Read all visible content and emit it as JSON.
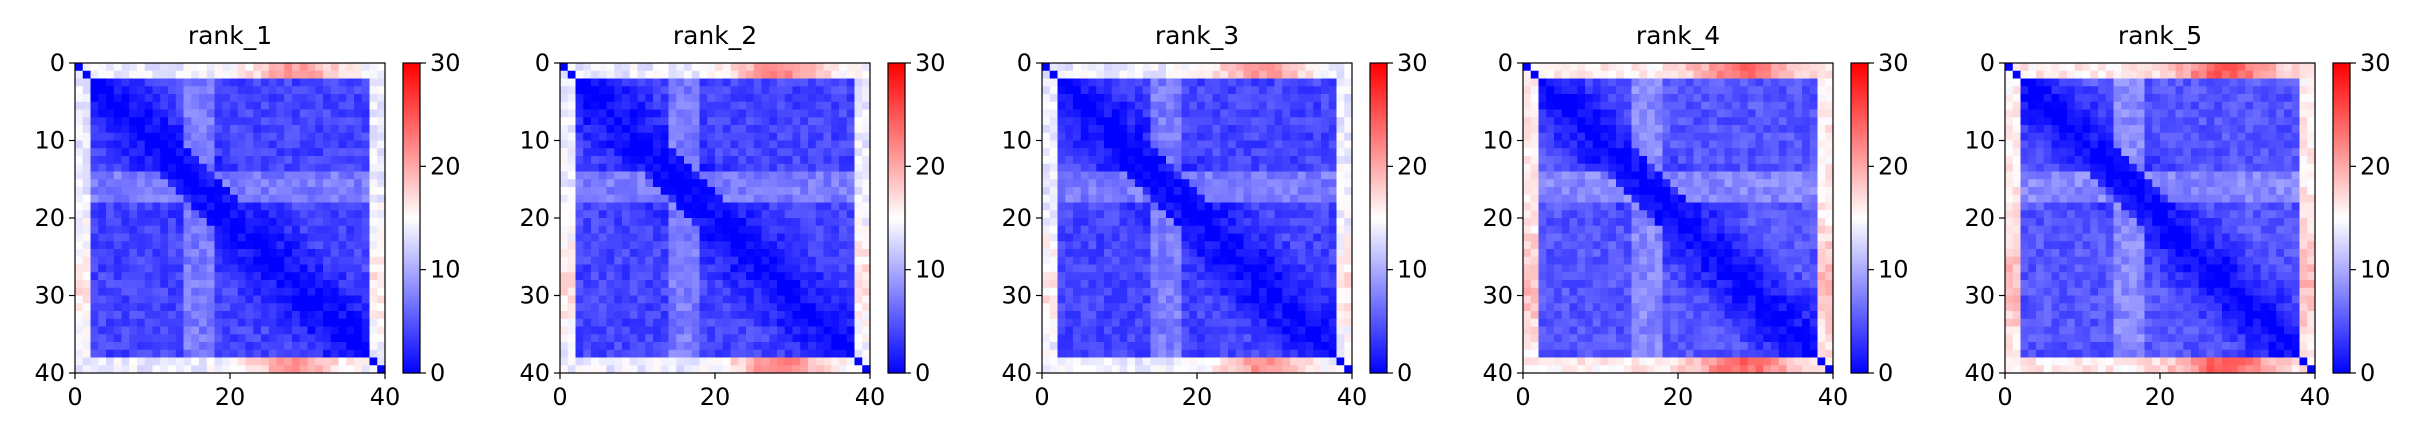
{
  "chart_data": [
    {
      "type": "heatmap",
      "title": "rank_1",
      "xlim": [
        0,
        40
      ],
      "ylim": [
        40,
        0
      ],
      "xticks": [
        "0",
        "20",
        "40"
      ],
      "yticks": [
        "0",
        "10",
        "20",
        "30",
        "40"
      ],
      "grid": false,
      "colormap": "bwr",
      "colorbar": {
        "vmin": 0,
        "vmax": 30,
        "ticks": [
          "0",
          "10",
          "20",
          "30"
        ]
      },
      "matrix_size": 40,
      "value_estimates": {
        "diagonal": 0,
        "typical_off_diagonal": 4,
        "mid_band_rows": 9,
        "edge_rows": 14,
        "edge_rows_peak": 21
      }
    },
    {
      "type": "heatmap",
      "title": "rank_2",
      "xlim": [
        0,
        40
      ],
      "ylim": [
        40,
        0
      ],
      "xticks": [
        "0",
        "20",
        "40"
      ],
      "yticks": [
        "0",
        "10",
        "20",
        "30",
        "40"
      ],
      "grid": false,
      "colormap": "bwr",
      "colorbar": {
        "vmin": 0,
        "vmax": 30,
        "ticks": [
          "0",
          "10",
          "20",
          "30"
        ]
      },
      "matrix_size": 40,
      "value_estimates": {
        "diagonal": 0,
        "typical_off_diagonal": 4,
        "mid_band_rows": 9,
        "edge_rows": 14,
        "edge_rows_peak": 22
      }
    },
    {
      "type": "heatmap",
      "title": "rank_3",
      "xlim": [
        0,
        40
      ],
      "ylim": [
        40,
        0
      ],
      "xticks": [
        "0",
        "20",
        "40"
      ],
      "yticks": [
        "0",
        "10",
        "20",
        "30",
        "40"
      ],
      "grid": false,
      "colormap": "bwr",
      "colorbar": {
        "vmin": 0,
        "vmax": 30,
        "ticks": [
          "0",
          "10",
          "20",
          "30"
        ]
      },
      "matrix_size": 40,
      "value_estimates": {
        "diagonal": 0,
        "typical_off_diagonal": 4,
        "mid_band_rows": 9,
        "edge_rows": 14,
        "edge_rows_peak": 21
      }
    },
    {
      "type": "heatmap",
      "title": "rank_4",
      "xlim": [
        0,
        40
      ],
      "ylim": [
        40,
        0
      ],
      "xticks": [
        "0",
        "20",
        "40"
      ],
      "yticks": [
        "0",
        "10",
        "20",
        "30",
        "40"
      ],
      "grid": false,
      "colormap": "bwr",
      "colorbar": {
        "vmin": 0,
        "vmax": 30,
        "ticks": [
          "0",
          "10",
          "20",
          "30"
        ]
      },
      "matrix_size": 40,
      "value_estimates": {
        "diagonal": 0,
        "typical_off_diagonal": 5,
        "mid_band_rows": 10,
        "edge_rows": 16,
        "edge_rows_peak": 24
      }
    },
    {
      "type": "heatmap",
      "title": "rank_5",
      "xlim": [
        0,
        40
      ],
      "ylim": [
        40,
        0
      ],
      "xticks": [
        "0",
        "20",
        "40"
      ],
      "yticks": [
        "0",
        "10",
        "20",
        "30",
        "40"
      ],
      "grid": false,
      "colormap": "bwr",
      "colorbar": {
        "vmin": 0,
        "vmax": 30,
        "ticks": [
          "0",
          "10",
          "20",
          "30"
        ]
      },
      "matrix_size": 40,
      "value_estimates": {
        "diagonal": 0,
        "typical_off_diagonal": 5,
        "mid_band_rows": 10,
        "edge_rows": 16,
        "edge_rows_peak": 25
      }
    }
  ]
}
